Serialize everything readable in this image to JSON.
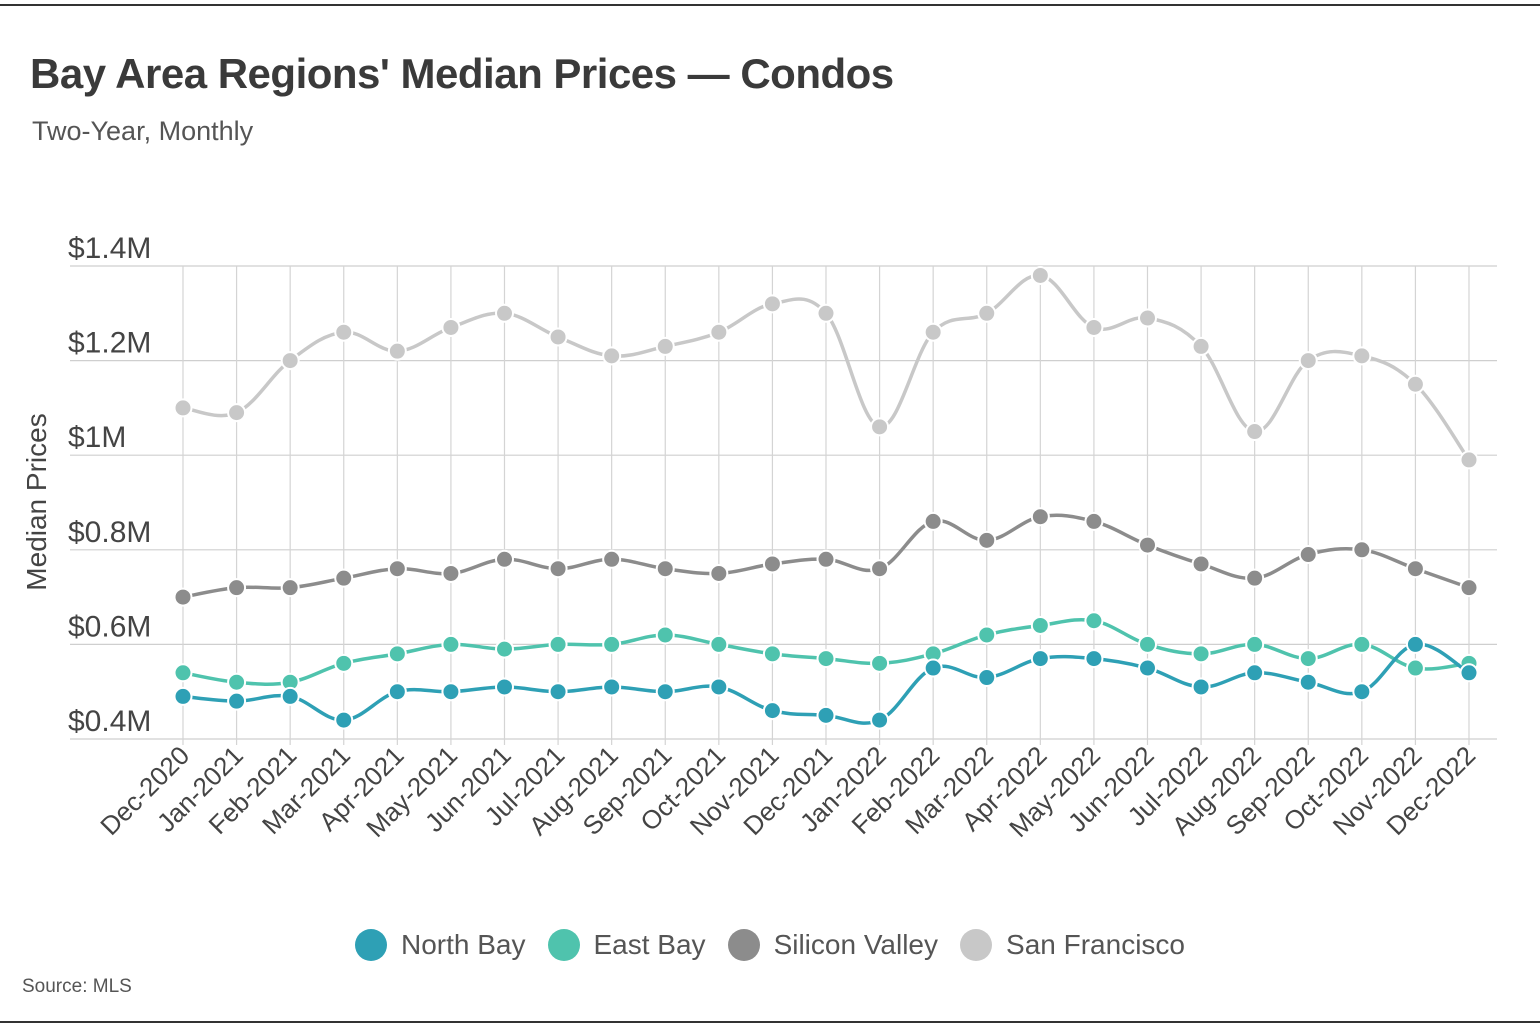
{
  "title": "Bay Area Regions' Median Prices — Condos",
  "subtitle": "Two-Year, Monthly",
  "source": "Source:  MLS",
  "chart_data": {
    "type": "line",
    "title": "Bay Area Regions' Median Prices — Condos",
    "subtitle": "Two-Year, Monthly",
    "xlabel": "",
    "ylabel": "Median Prices",
    "ylim": [
      0.4,
      1.4
    ],
    "yticks": [
      0.4,
      0.6,
      0.8,
      1.0,
      1.2,
      1.4
    ],
    "ytick_labels": [
      "$0.4M",
      "$0.6M",
      "$0.8M",
      "$1M",
      "$1.2M",
      "$1.4M"
    ],
    "grid": true,
    "legend_position": "bottom-center",
    "categories": [
      "Dec-2020",
      "Jan-2021",
      "Feb-2021",
      "Mar-2021",
      "Apr-2021",
      "May-2021",
      "Jun-2021",
      "Jul-2021",
      "Aug-2021",
      "Sep-2021",
      "Oct-2021",
      "Nov-2021",
      "Dec-2021",
      "Jan-2022",
      "Feb-2022",
      "Mar-2022",
      "Apr-2022",
      "May-2022",
      "Jun-2022",
      "Jul-2022",
      "Aug-2022",
      "Sep-2022",
      "Oct-2022",
      "Nov-2022",
      "Dec-2022"
    ],
    "series": [
      {
        "name": "San Francisco",
        "color": "#c8c8c8",
        "values": [
          1.1,
          1.09,
          1.2,
          1.26,
          1.22,
          1.27,
          1.3,
          1.25,
          1.21,
          1.23,
          1.26,
          1.32,
          1.3,
          1.06,
          1.26,
          1.3,
          1.38,
          1.27,
          1.29,
          1.23,
          1.05,
          1.2,
          1.21,
          1.15,
          0.99
        ]
      },
      {
        "name": "Silicon Valley",
        "color": "#8c8c8c",
        "values": [
          0.7,
          0.72,
          0.72,
          0.74,
          0.76,
          0.75,
          0.78,
          0.76,
          0.78,
          0.76,
          0.75,
          0.77,
          0.78,
          0.76,
          0.86,
          0.82,
          0.87,
          0.86,
          0.81,
          0.77,
          0.74,
          0.79,
          0.8,
          0.76,
          0.72
        ]
      },
      {
        "name": "East Bay",
        "color": "#4fc3ad",
        "values": [
          0.54,
          0.52,
          0.52,
          0.56,
          0.58,
          0.6,
          0.59,
          0.6,
          0.6,
          0.62,
          0.6,
          0.58,
          0.57,
          0.56,
          0.58,
          0.62,
          0.64,
          0.65,
          0.6,
          0.58,
          0.6,
          0.57,
          0.6,
          0.55,
          0.56
        ]
      },
      {
        "name": "North Bay",
        "color": "#2ea0b5",
        "values": [
          0.49,
          0.48,
          0.49,
          0.44,
          0.5,
          0.5,
          0.51,
          0.5,
          0.51,
          0.5,
          0.51,
          0.46,
          0.45,
          0.44,
          0.55,
          0.53,
          0.57,
          0.57,
          0.55,
          0.51,
          0.54,
          0.52,
          0.5,
          0.6,
          0.54
        ]
      }
    ]
  },
  "legend": [
    {
      "label": "North Bay",
      "color": "#2ea0b5"
    },
    {
      "label": "East Bay",
      "color": "#4fc3ad"
    },
    {
      "label": "Silicon Valley",
      "color": "#8c8c8c"
    },
    {
      "label": "San Francisco",
      "color": "#c8c8c8"
    }
  ]
}
